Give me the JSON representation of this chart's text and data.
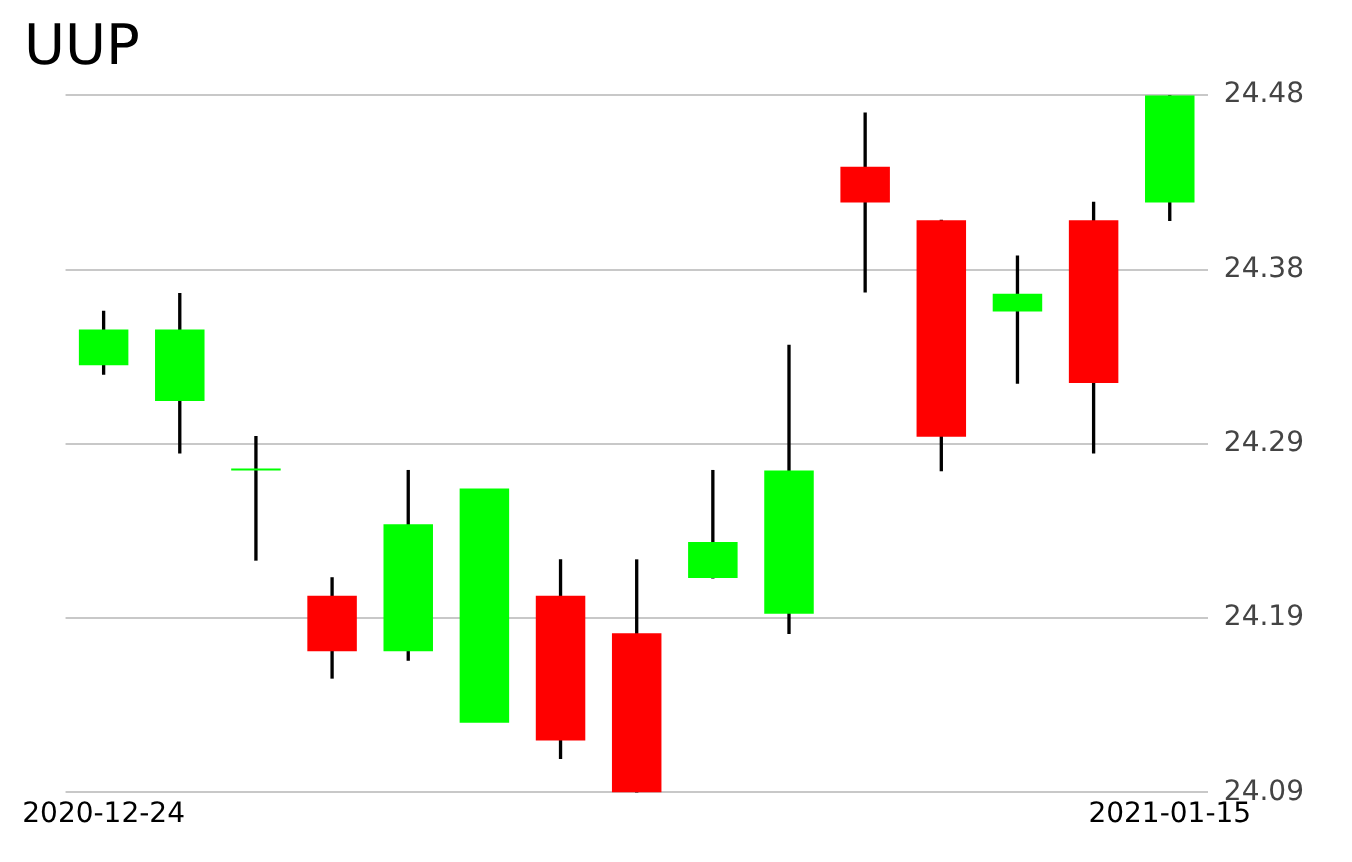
{
  "chart_data": {
    "type": "candlestick",
    "title": "UUP",
    "categories": [
      "2020-12-24",
      null,
      null,
      null,
      null,
      null,
      null,
      null,
      null,
      null,
      null,
      null,
      null,
      null,
      "2021-01-15"
    ],
    "ohlc": [
      [
        24.329,
        24.359,
        24.324,
        24.349
      ],
      [
        24.309,
        24.369,
        24.28,
        24.349
      ],
      [
        24.27,
        24.289,
        24.22,
        24.27
      ],
      [
        24.2,
        24.21,
        24.154,
        24.169
      ],
      [
        24.169,
        24.27,
        24.164,
        24.24
      ],
      [
        24.129,
        24.26,
        24.129,
        24.26
      ],
      [
        24.2,
        24.22,
        24.109,
        24.119
      ],
      [
        24.179,
        24.22,
        24.09,
        24.09
      ],
      [
        24.21,
        24.27,
        24.21,
        24.23
      ],
      [
        24.19,
        24.34,
        24.179,
        24.27
      ],
      [
        24.44,
        24.47,
        24.37,
        24.42
      ],
      [
        24.41,
        24.41,
        24.27,
        24.289
      ],
      [
        24.359,
        24.39,
        24.319,
        24.369
      ],
      [
        24.41,
        24.42,
        24.28,
        24.319
      ],
      [
        24.42,
        24.48,
        24.41,
        24.48
      ]
    ],
    "colors": [
      "#00ff00",
      "#00ff00",
      "#00ff00",
      "#ff0000",
      "#00ff00",
      "#00ff00",
      "#ff0000",
      "#ff0000",
      "#00ff00",
      "#00ff00",
      "#ff0000",
      "#ff0000",
      "#00ff00",
      "#ff0000",
      "#00ff00"
    ],
    "ylim": [
      24.09,
      24.48
    ],
    "yticks": [
      {
        "value": 24.09,
        "label": "24.09"
      },
      {
        "value": 24.1875,
        "label": "24.19"
      },
      {
        "value": 24.285,
        "label": "24.29"
      },
      {
        "value": 24.3825,
        "label": "24.38"
      },
      {
        "value": 24.48,
        "label": "24.48"
      }
    ],
    "grid": "y"
  }
}
